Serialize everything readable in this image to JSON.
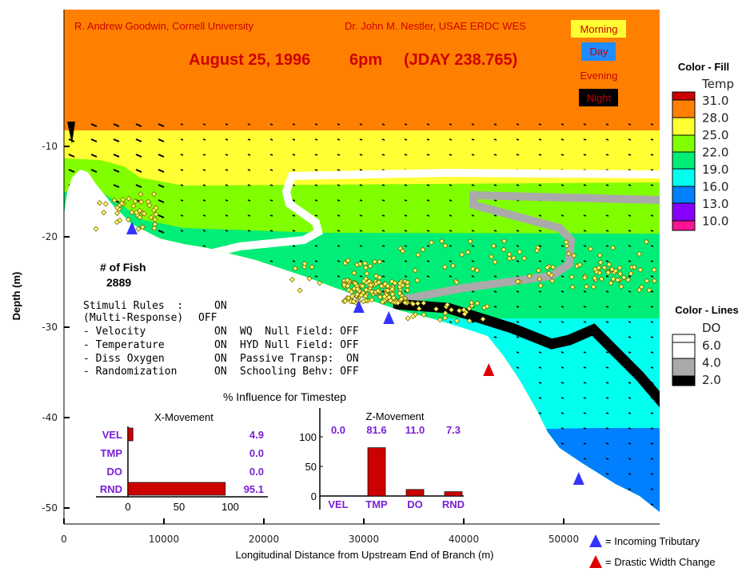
{
  "header": {
    "author_left": "R. Andrew Goodwin, Cornell University",
    "author_right": "Dr. John M. Nestler, USAE ERDC WES",
    "date": "August 25, 1996",
    "time": "6pm",
    "jday": "(JDAY 238.765)"
  },
  "time_of_day": {
    "items": [
      {
        "label": "Morning",
        "bg": "#ffff33"
      },
      {
        "label": "Day",
        "bg": "#1e8cff"
      },
      {
        "label": "Evening",
        "bg": ""
      },
      {
        "label": "Night",
        "bg": "#000000"
      }
    ],
    "text_color": "#cc0000"
  },
  "fish": {
    "label": "# of Fish",
    "count": "2889"
  },
  "stimuli": {
    "rows": [
      {
        "label": "Stimuli Rules  :",
        "state": "ON",
        "extra": ""
      },
      {
        "label": "(Multi-Response)",
        "state": "OFF",
        "extra": ""
      },
      {
        "label": "- Velocity",
        "state": "ON",
        "extra": "WQ  Null Field: OFF"
      },
      {
        "label": "- Temperature",
        "state": "ON",
        "extra": "HYD Null Field: OFF"
      },
      {
        "label": "- Diss Oxygen",
        "state": "ON",
        "extra": "Passive Transp:  ON"
      },
      {
        "label": "- Randomization",
        "state": "ON",
        "extra": "Schooling Behv: OFF"
      }
    ]
  },
  "influence_title": "% Influence for Timestep",
  "legend_fill": {
    "title": "Color - Fill",
    "variable": "Temp",
    "levels": [
      {
        "label": "31.0",
        "color": "#cc0000"
      },
      {
        "label": "28.0",
        "color": "#ff8000"
      },
      {
        "label": "25.0",
        "color": "#ffff33"
      },
      {
        "label": "22.0",
        "color": "#80ff00"
      },
      {
        "label": "19.0",
        "color": "#00ee77"
      },
      {
        "label": "16.0",
        "color": "#00ffee"
      },
      {
        "label": "13.0",
        "color": "#0080ff"
      },
      {
        "label": "10.0",
        "color": "#8800ff"
      },
      {
        "label": "",
        "color": "#ff1493"
      }
    ]
  },
  "legend_lines": {
    "title": "Color - Lines",
    "variable": "DO",
    "levels": [
      {
        "label": "6.0",
        "color": "#ffffff"
      },
      {
        "label": "4.0",
        "color": "#aaaaaa"
      },
      {
        "label": "2.0",
        "color": "#000000"
      }
    ]
  },
  "markers_legend": {
    "tributary": {
      "label": "= Incoming Tributary",
      "color": "#3333ff"
    },
    "width_change": {
      "label": "= Drastic Width Change",
      "color": "#dd0000"
    }
  },
  "chart_data": [
    {
      "type": "area",
      "title": "",
      "xlabel": "Longitudinal Distance from Upstream End of Branch (m)",
      "ylabel": "Depth (m)",
      "xlim": [
        0,
        59500
      ],
      "ylim": [
        -51.5,
        -5
      ],
      "xticks": [
        "0",
        "10000",
        "20000",
        "30000",
        "40000",
        "50000"
      ],
      "yticks": [
        "-10",
        "-20",
        "-30",
        "-40",
        "-50"
      ],
      "tributaries_x": [
        6800,
        29500,
        32500,
        51500
      ],
      "width_change_x": [
        42500
      ],
      "grid": false
    },
    {
      "type": "bar",
      "orientation": "horizontal",
      "title": "X-Movement",
      "categories": [
        "VEL",
        "TMP",
        "DO",
        "RND"
      ],
      "values": [
        4.9,
        0.0,
        0.0,
        95.1
      ],
      "value_labels": [
        "4.9",
        "0.0",
        "0.0",
        "95.1"
      ],
      "xticks": [
        "0",
        "50",
        "100"
      ],
      "xlim": [
        0,
        100
      ],
      "color": "#cc0000"
    },
    {
      "type": "bar",
      "orientation": "vertical",
      "title": "Z-Movement",
      "categories": [
        "VEL",
        "TMP",
        "DO",
        "RND"
      ],
      "values": [
        0.0,
        81.6,
        11.0,
        7.3
      ],
      "value_labels": [
        "0.0",
        "81.6",
        "11.0",
        "7.3"
      ],
      "yticks": [
        "0",
        "50",
        "100"
      ],
      "ylim": [
        0,
        100
      ],
      "color": "#cc0000"
    }
  ]
}
